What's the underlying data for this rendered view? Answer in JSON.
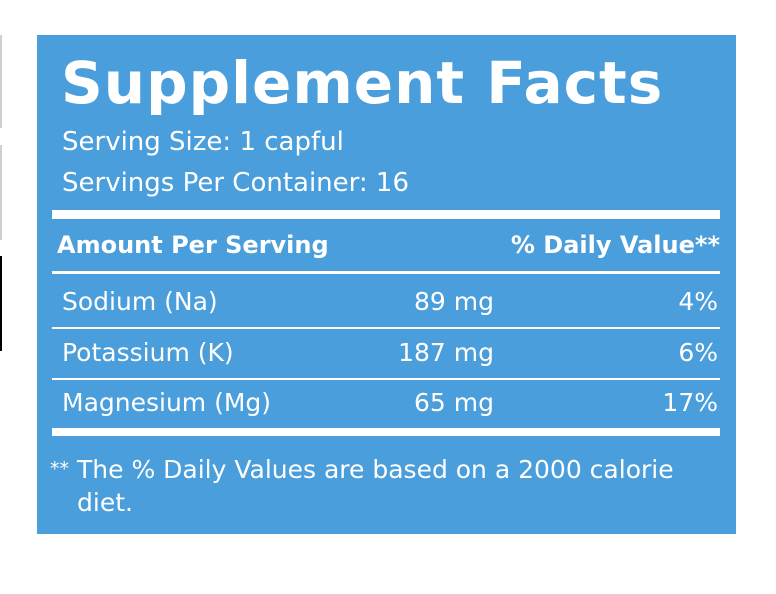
{
  "title": "Supplement Facts",
  "serving_size": "Serving Size: 1 capful",
  "servings_per_container": "Servings Per Container: 16",
  "table": {
    "header": [
      "Amount Per Serving",
      "% Daily Value**"
    ],
    "rows": [
      [
        "Sodium (Na)",
        "89 mg",
        "4%"
      ],
      [
        "Potassium (K)",
        "187 mg",
        "6%"
      ],
      [
        "Magnesium (Mg)",
        "65 mg",
        "17%"
      ]
    ]
  },
  "footnote": {
    "marker": "**",
    "text": "The % Daily Values are based on a 2000 calorie diet."
  }
}
